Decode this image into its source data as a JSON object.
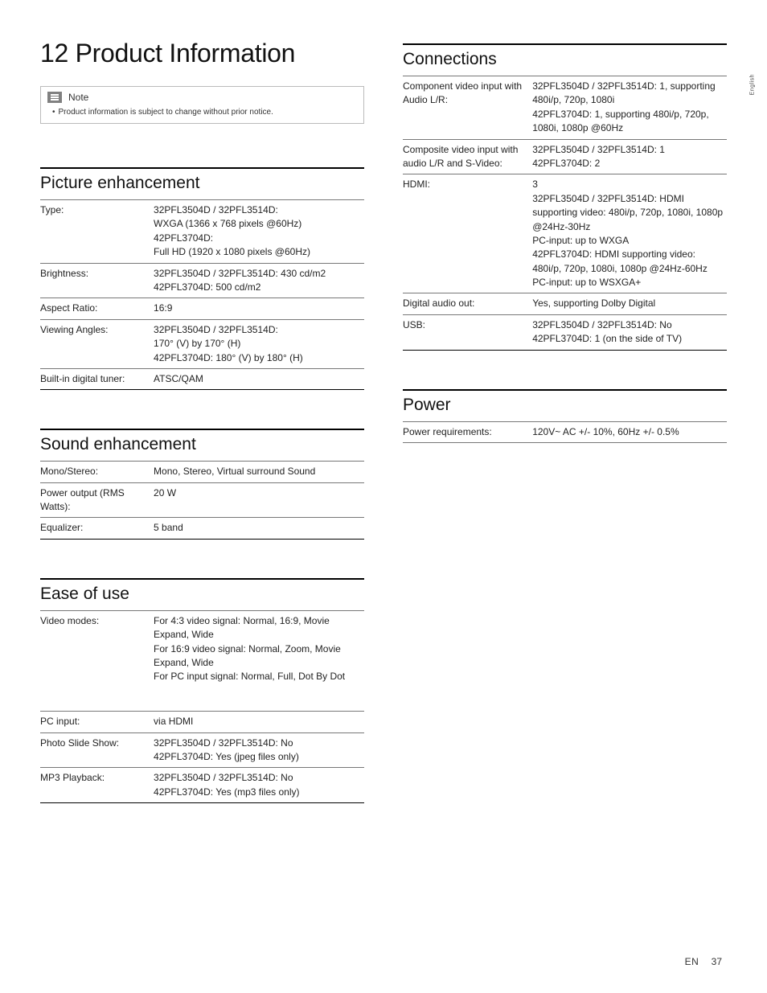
{
  "sideTab": "English",
  "title": "12 Product Information",
  "note": {
    "label": "Note",
    "text": "Product information is subject to change without prior notice."
  },
  "sections": {
    "picture": {
      "title": "Picture enhancement",
      "rows": [
        {
          "label": "Type:",
          "lines": [
            "32PFL3504D / 32PFL3514D:",
            "WXGA (1366 x 768 pixels @60Hz)",
            "42PFL3704D:",
            "Full HD (1920 x 1080 pixels @60Hz)"
          ]
        },
        {
          "label": "Brightness:",
          "lines": [
            "32PFL3504D / 32PFL3514D: 430 cd/m2",
            "42PFL3704D: 500 cd/m2"
          ]
        },
        {
          "label": "Aspect Ratio:",
          "lines": [
            "16:9"
          ]
        },
        {
          "label": "Viewing Angles:",
          "lines": [
            "32PFL3504D / 32PFL3514D:",
            "170° (V) by 170° (H)",
            "42PFL3704D: 180° (V) by 180° (H)"
          ]
        },
        {
          "label": "Built-in digital tuner:",
          "lines": [
            "ATSC/QAM"
          ]
        }
      ]
    },
    "sound": {
      "title": "Sound enhancement",
      "rows": [
        {
          "label": "Mono/Stereo:",
          "lines": [
            "Mono, Stereo, Virtual surround Sound"
          ]
        },
        {
          "label": "Power output (RMS Watts):",
          "lines": [
            "20 W"
          ]
        },
        {
          "label": "Equalizer:",
          "lines": [
            "5 band"
          ]
        }
      ]
    },
    "ease": {
      "title": "Ease of use",
      "rows": [
        {
          "label": "Video modes:",
          "lines": [
            "For 4:3 video signal: Normal, 16:9, Movie Expand, Wide",
            "For 16:9 video signal: Normal, Zoom, Movie Expand, Wide",
            "For PC input signal: Normal, Full, Dot By Dot"
          ],
          "gapAfter": true
        },
        {
          "label": "PC input:",
          "lines": [
            "via HDMI"
          ]
        },
        {
          "label": "Photo Slide Show:",
          "lines": [
            "32PFL3504D / 32PFL3514D: No",
            "42PFL3704D: Yes (jpeg files only)"
          ]
        },
        {
          "label": "MP3 Playback:",
          "lines": [
            "32PFL3504D / 32PFL3514D: No",
            "42PFL3704D: Yes (mp3 files only)"
          ]
        }
      ]
    },
    "connections": {
      "title": "Connections",
      "rows": [
        {
          "label": "Component video input with Audio L/R:",
          "lines": [
            "32PFL3504D / 32PFL3514D: 1, supporting 480i/p, 720p, 1080i",
            "42PFL3704D: 1, supporting 480i/p, 720p, 1080i, 1080p @60Hz"
          ]
        },
        {
          "label": "Composite video input with audio L/R and S-Video:",
          "lines": [
            "32PFL3504D / 32PFL3514D: 1",
            "42PFL3704D: 2"
          ]
        },
        {
          "label": "HDMI:",
          "lines": [
            "3",
            "32PFL3504D / 32PFL3514D: HDMI supporting video: 480i/p, 720p, 1080i, 1080p @24Hz-30Hz",
            "PC-input: up to WXGA",
            "42PFL3704D: HDMI supporting video: 480i/p, 720p, 1080i, 1080p @24Hz-60Hz",
            "PC-input: up to WSXGA+"
          ]
        },
        {
          "label": "Digital audio out:",
          "lines": [
            "Yes, supporting Dolby Digital"
          ]
        },
        {
          "label": "USB:",
          "lines": [
            "32PFL3504D / 32PFL3514D: No",
            "42PFL3704D: 1 (on the side of TV)"
          ]
        }
      ]
    },
    "power": {
      "title": "Power",
      "rows": [
        {
          "label": "Power requirements:",
          "lines": [
            "120V~ AC +/- 10%, 60Hz +/- 0.5%"
          ]
        }
      ]
    }
  },
  "footer": {
    "lang": "EN",
    "page": "37"
  }
}
